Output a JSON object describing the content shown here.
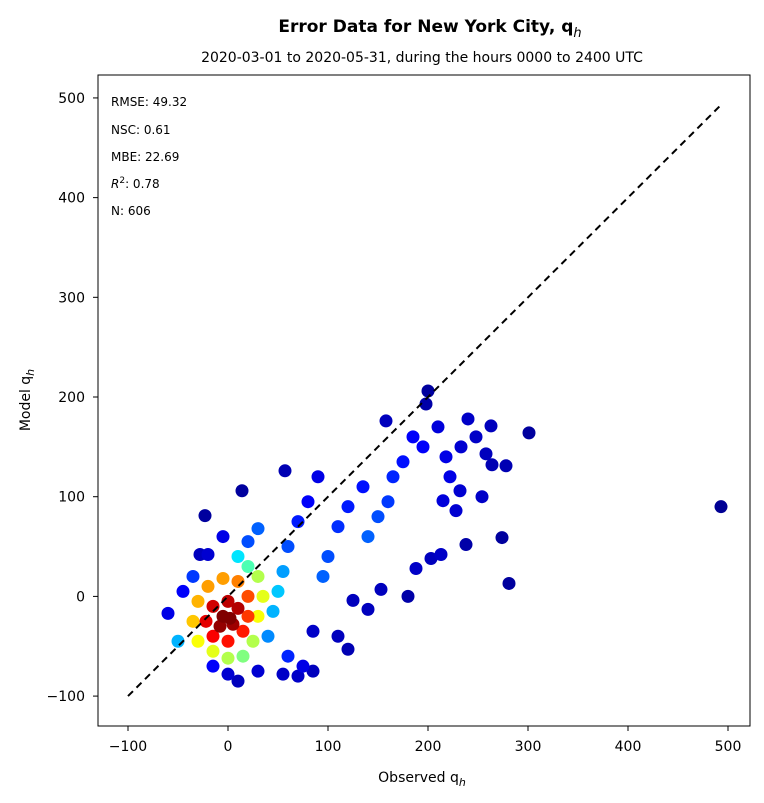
{
  "chart_data": {
    "type": "scatter",
    "title": "Error Data for New York City, q",
    "title_subscript": "h",
    "subtitle": "2020-03-01 to 2020-05-31, during the hours 0000 to 2400 UTC",
    "xlabel": "Observed q",
    "ylabel": "Model q",
    "label_subscript": "h",
    "xlim": [
      -130,
      522
    ],
    "ylim": [
      -130,
      523
    ],
    "xticks": [
      -100,
      0,
      100,
      200,
      300,
      400,
      500
    ],
    "yticks": [
      -100,
      0,
      100,
      200,
      300,
      400,
      500
    ],
    "xtick_labels": [
      "−100",
      "0",
      "100",
      "200",
      "300",
      "400",
      "500"
    ],
    "ytick_labels": [
      "−100",
      "0",
      "100",
      "200",
      "300",
      "400",
      "500"
    ],
    "grid": false,
    "colormap": "jet (point density)",
    "reference_line": {
      "style": "dashed",
      "color": "#000000",
      "from": [
        -100,
        -100
      ],
      "to": [
        493,
        493
      ]
    },
    "stats": {
      "rmse": "RMSE: 49.32",
      "nsc": "NSC: 0.61",
      "mbe": "MBE: 22.69",
      "r2_label": "R",
      "r2_value": ": 0.78",
      "n": "N:  606"
    },
    "points": [
      {
        "x": 493,
        "y": 90,
        "d": 0.02
      },
      {
        "x": 301,
        "y": 164,
        "d": 0.03
      },
      {
        "x": 200,
        "y": 206,
        "d": 0.03
      },
      {
        "x": 198,
        "y": 193,
        "d": 0.04
      },
      {
        "x": 158,
        "y": 176,
        "d": 0.06
      },
      {
        "x": 281,
        "y": 13,
        "d": 0.03
      },
      {
        "x": 274,
        "y": 59,
        "d": 0.03
      },
      {
        "x": 238,
        "y": 52,
        "d": 0.04
      },
      {
        "x": 180,
        "y": 0,
        "d": 0.04
      },
      {
        "x": 14,
        "y": 106,
        "d": 0.03
      },
      {
        "x": -23,
        "y": 81,
        "d": 0.03
      },
      {
        "x": 57,
        "y": 126,
        "d": 0.05
      },
      {
        "x": 120,
        "y": -53,
        "d": 0.05
      },
      {
        "x": 110,
        "y": -40,
        "d": 0.06
      },
      {
        "x": 85,
        "y": -35,
        "d": 0.07
      },
      {
        "x": 153,
        "y": 7,
        "d": 0.06
      },
      {
        "x": 140,
        "y": -13,
        "d": 0.06
      },
      {
        "x": 125,
        "y": -4,
        "d": 0.06
      },
      {
        "x": 203,
        "y": 38,
        "d": 0.06
      },
      {
        "x": 188,
        "y": 28,
        "d": 0.07
      },
      {
        "x": 213,
        "y": 42,
        "d": 0.07
      },
      {
        "x": 264,
        "y": 132,
        "d": 0.05
      },
      {
        "x": 278,
        "y": 131,
        "d": 0.05
      },
      {
        "x": 258,
        "y": 143,
        "d": 0.06
      },
      {
        "x": 263,
        "y": 171,
        "d": 0.06
      },
      {
        "x": 240,
        "y": 178,
        "d": 0.07
      },
      {
        "x": 248,
        "y": 160,
        "d": 0.07
      },
      {
        "x": 233,
        "y": 150,
        "d": 0.08
      },
      {
        "x": 232,
        "y": 106,
        "d": 0.08
      },
      {
        "x": 254,
        "y": 100,
        "d": 0.07
      },
      {
        "x": 228,
        "y": 86,
        "d": 0.08
      },
      {
        "x": 215,
        "y": 96,
        "d": 0.09
      },
      {
        "x": 210,
        "y": 170,
        "d": 0.09
      },
      {
        "x": 218,
        "y": 140,
        "d": 0.1
      },
      {
        "x": 222,
        "y": 120,
        "d": 0.1
      },
      {
        "x": 195,
        "y": 150,
        "d": 0.12
      },
      {
        "x": 185,
        "y": 160,
        "d": 0.12
      },
      {
        "x": 175,
        "y": 135,
        "d": 0.14
      },
      {
        "x": 165,
        "y": 120,
        "d": 0.16
      },
      {
        "x": 160,
        "y": 95,
        "d": 0.18
      },
      {
        "x": 150,
        "y": 80,
        "d": 0.2
      },
      {
        "x": 140,
        "y": 60,
        "d": 0.22
      },
      {
        "x": 135,
        "y": 110,
        "d": 0.14
      },
      {
        "x": 120,
        "y": 90,
        "d": 0.15
      },
      {
        "x": 110,
        "y": 70,
        "d": 0.17
      },
      {
        "x": 100,
        "y": 40,
        "d": 0.2
      },
      {
        "x": 95,
        "y": 20,
        "d": 0.22
      },
      {
        "x": 90,
        "y": 120,
        "d": 0.1
      },
      {
        "x": 80,
        "y": 95,
        "d": 0.12
      },
      {
        "x": 70,
        "y": 75,
        "d": 0.15
      },
      {
        "x": 60,
        "y": 50,
        "d": 0.2
      },
      {
        "x": 55,
        "y": 25,
        "d": 0.28
      },
      {
        "x": 50,
        "y": 5,
        "d": 0.32
      },
      {
        "x": 45,
        "y": -15,
        "d": 0.3
      },
      {
        "x": 40,
        "y": -40,
        "d": 0.26
      },
      {
        "x": 60,
        "y": -60,
        "d": 0.16
      },
      {
        "x": 75,
        "y": -70,
        "d": 0.1
      },
      {
        "x": 70,
        "y": -80,
        "d": 0.07
      },
      {
        "x": 85,
        "y": -75,
        "d": 0.06
      },
      {
        "x": 55,
        "y": -78,
        "d": 0.07
      },
      {
        "x": 30,
        "y": -75,
        "d": 0.08
      },
      {
        "x": 10,
        "y": -85,
        "d": 0.06
      },
      {
        "x": 0,
        "y": -78,
        "d": 0.08
      },
      {
        "x": -15,
        "y": -70,
        "d": 0.12
      },
      {
        "x": -50,
        "y": -45,
        "d": 0.3
      },
      {
        "x": -60,
        "y": -17,
        "d": 0.1
      },
      {
        "x": -45,
        "y": 5,
        "d": 0.12
      },
      {
        "x": -35,
        "y": 20,
        "d": 0.18
      },
      {
        "x": -28,
        "y": 42,
        "d": 0.06
      },
      {
        "x": -20,
        "y": 42,
        "d": 0.08
      },
      {
        "x": -5,
        "y": 60,
        "d": 0.1
      },
      {
        "x": 20,
        "y": 55,
        "d": 0.2
      },
      {
        "x": 30,
        "y": 68,
        "d": 0.22
      },
      {
        "x": 10,
        "y": 40,
        "d": 0.35
      },
      {
        "x": 20,
        "y": 30,
        "d": 0.45
      },
      {
        "x": 30,
        "y": 20,
        "d": 0.55
      },
      {
        "x": 35,
        "y": 0,
        "d": 0.6
      },
      {
        "x": 30,
        "y": -20,
        "d": 0.62
      },
      {
        "x": 25,
        "y": -45,
        "d": 0.55
      },
      {
        "x": 15,
        "y": -60,
        "d": 0.5
      },
      {
        "x": 0,
        "y": -62,
        "d": 0.55
      },
      {
        "x": -15,
        "y": -55,
        "d": 0.6
      },
      {
        "x": -30,
        "y": -45,
        "d": 0.62
      },
      {
        "x": -35,
        "y": -25,
        "d": 0.68
      },
      {
        "x": -30,
        "y": -5,
        "d": 0.7
      },
      {
        "x": -20,
        "y": 10,
        "d": 0.72
      },
      {
        "x": -5,
        "y": 18,
        "d": 0.72
      },
      {
        "x": 10,
        "y": 15,
        "d": 0.75
      },
      {
        "x": 20,
        "y": 0,
        "d": 0.8
      },
      {
        "x": 20,
        "y": -20,
        "d": 0.82
      },
      {
        "x": 15,
        "y": -35,
        "d": 0.85
      },
      {
        "x": 0,
        "y": -45,
        "d": 0.86
      },
      {
        "x": -15,
        "y": -40,
        "d": 0.88
      },
      {
        "x": -22,
        "y": -25,
        "d": 0.9
      },
      {
        "x": -15,
        "y": -10,
        "d": 0.92
      },
      {
        "x": 0,
        "y": -5,
        "d": 0.94
      },
      {
        "x": 10,
        "y": -12,
        "d": 0.95
      },
      {
        "x": 5,
        "y": -28,
        "d": 0.97
      },
      {
        "x": -8,
        "y": -30,
        "d": 0.98
      },
      {
        "x": -5,
        "y": -20,
        "d": 1.0
      },
      {
        "x": 2,
        "y": -22,
        "d": 1.0
      }
    ]
  }
}
